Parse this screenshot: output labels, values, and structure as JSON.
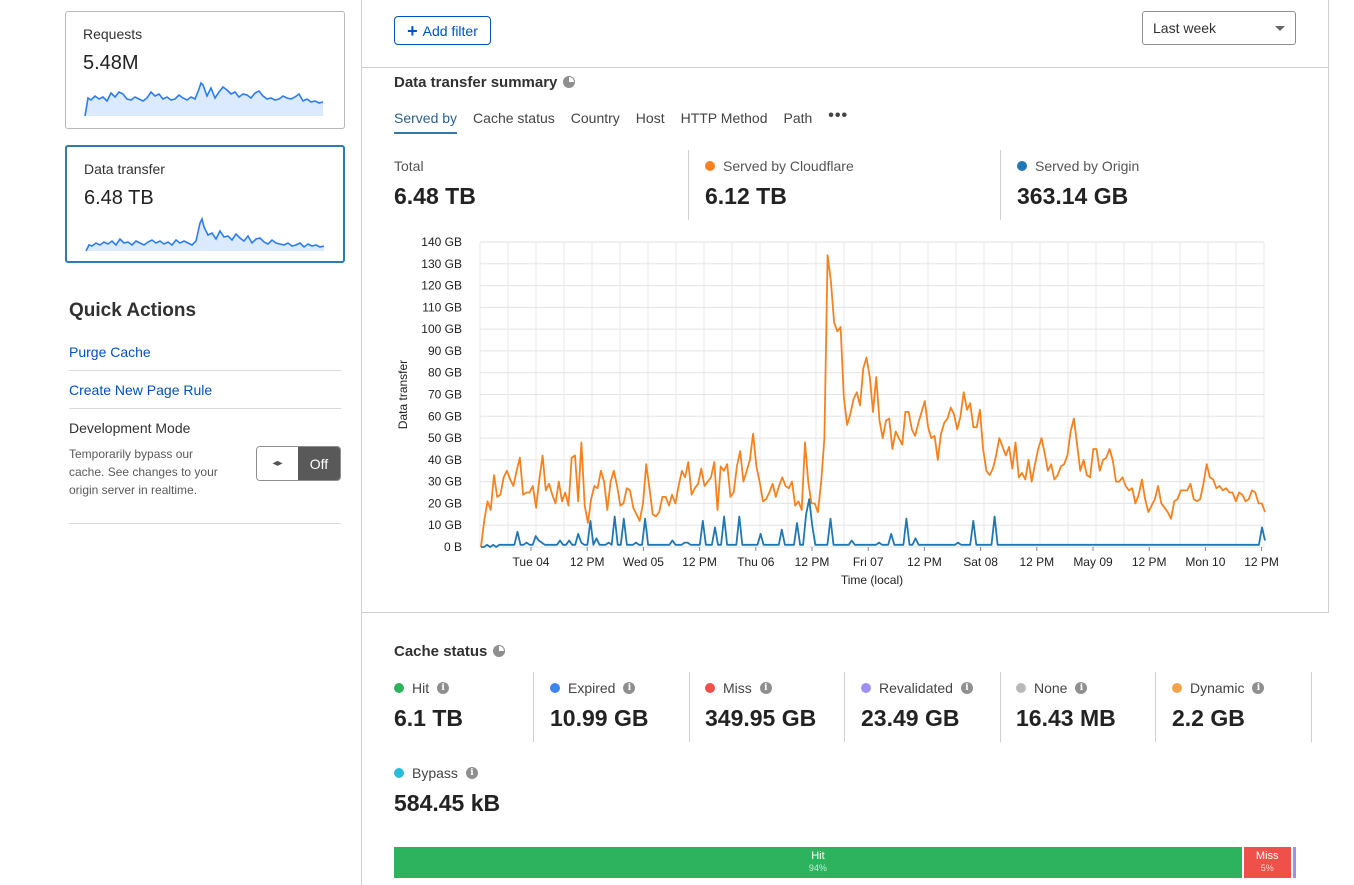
{
  "sidebar": {
    "requests": {
      "title": "Requests",
      "value": "5.48M"
    },
    "data_transfer": {
      "title": "Data transfer",
      "value": "6.48 TB"
    },
    "quick_actions": {
      "title": "Quick Actions",
      "purge": "Purge Cache",
      "page_rule": "Create New Page Rule",
      "dev_mode": {
        "title": "Development Mode",
        "description": "Temporarily bypass our cache. See changes to your origin server in realtime.",
        "toggle_label": "Off",
        "toggle_icon": "arrows-icon"
      }
    }
  },
  "toolbar": {
    "add_filter": "Add filter",
    "time_range": "Last week"
  },
  "summary": {
    "title": "Data transfer summary",
    "tabs": [
      "Served by",
      "Cache status",
      "Country",
      "Host",
      "HTTP Method",
      "Path"
    ],
    "active_tab": "Served by",
    "stats": {
      "total_label": "Total",
      "total_value": "6.48 TB",
      "cf_label": "Served by Cloudflare",
      "cf_value": "6.12 TB",
      "origin_label": "Served by Origin",
      "origin_value": "363.14 GB"
    },
    "colors": {
      "cloudflare": "#f6821f",
      "origin": "#1f77b4"
    }
  },
  "chart_data": {
    "type": "line",
    "ylabel": "Data transfer",
    "xlabel": "Time (local)",
    "ylim": [
      0,
      140
    ],
    "y_ticks": [
      "0 B",
      "10 GB",
      "20 GB",
      "30 GB",
      "40 GB",
      "50 GB",
      "60 GB",
      "70 GB",
      "80 GB",
      "90 GB",
      "100 GB",
      "110 GB",
      "120 GB",
      "130 GB",
      "140 GB"
    ],
    "x_ticks": [
      "Tue 04",
      "12 PM",
      "Wed 05",
      "12 PM",
      "Thu 06",
      "12 PM",
      "Fri 07",
      "12 PM",
      "Sat 08",
      "12 PM",
      "May 09",
      "12 PM",
      "Mon 10",
      "12 PM"
    ],
    "series": [
      {
        "name": "Served by Cloudflare",
        "color": "#f6821f",
        "values": [
          0,
          12,
          21,
          17,
          33,
          23,
          24,
          32,
          35,
          31,
          28,
          35,
          41,
          24,
          25,
          25,
          28,
          18,
          31,
          42,
          26,
          29,
          24,
          20,
          30,
          21,
          25,
          19,
          41,
          42,
          21,
          48,
          19,
          11,
          22,
          28,
          27,
          35,
          30,
          17,
          30,
          35,
          28,
          19,
          20,
          27,
          26,
          18,
          15,
          12,
          20,
          38,
          27,
          15,
          14,
          16,
          23,
          23,
          19,
          24,
          20,
          28,
          35,
          32,
          39,
          24,
          27,
          29,
          36,
          28,
          30,
          32,
          39,
          17,
          37,
          35,
          38,
          23,
          25,
          37,
          44,
          30,
          35,
          40,
          52,
          37,
          30,
          21,
          22,
          25,
          29,
          23,
          28,
          32,
          28,
          27,
          30,
          19,
          21,
          17,
          48,
          30,
          20,
          20,
          16,
          30,
          50,
          134,
          122,
          103,
          99,
          101,
          69,
          56,
          61,
          68,
          71,
          65,
          82,
          87,
          78,
          62,
          78,
          58,
          50,
          58,
          59,
          45,
          53,
          50,
          47,
          62,
          62,
          54,
          51,
          57,
          62,
          67,
          55,
          50,
          51,
          40,
          52,
          57,
          59,
          64,
          61,
          54,
          60,
          71,
          63,
          66,
          55,
          55,
          63,
          45,
          35,
          33,
          36,
          42,
          50,
          46,
          42,
          46,
          36,
          48,
          32,
          34,
          31,
          40,
          30,
          38,
          45,
          50,
          43,
          35,
          38,
          31,
          33,
          37,
          38,
          42,
          53,
          59,
          47,
          35,
          40,
          33,
          32,
          45,
          45,
          35,
          40,
          41,
          45,
          40,
          30,
          30,
          32,
          28,
          26,
          27,
          20,
          24,
          31,
          22,
          16,
          19,
          22,
          28,
          20,
          18,
          16,
          13,
          21,
          22,
          26,
          26,
          26,
          29,
          22,
          21,
          22,
          29,
          38,
          32,
          31,
          27,
          28,
          26,
          27,
          25,
          25,
          21,
          25,
          24,
          21,
          22,
          26,
          25,
          20,
          20,
          16
        ]
      },
      {
        "name": "Served by Origin",
        "color": "#1f77b4",
        "values": [
          0,
          0,
          1,
          0,
          1,
          0,
          1,
          1,
          1,
          1,
          1,
          1,
          7,
          1,
          1,
          2,
          1,
          1,
          5,
          3,
          2,
          1,
          1,
          1,
          1,
          1,
          3,
          1,
          1,
          3,
          1,
          1,
          6,
          2,
          1,
          1,
          12,
          1,
          4,
          1,
          1,
          1,
          2,
          1,
          14,
          1,
          1,
          13,
          1,
          1,
          1,
          2,
          1,
          1,
          13,
          1,
          1,
          1,
          1,
          1,
          1,
          1,
          1,
          3,
          1,
          1,
          1,
          2,
          2,
          1,
          1,
          1,
          1,
          12,
          1,
          1,
          1,
          9,
          1,
          1,
          14,
          1,
          1,
          1,
          1,
          14,
          1,
          1,
          1,
          1,
          1,
          1,
          6,
          1,
          1,
          1,
          1,
          1,
          1,
          8,
          1,
          1,
          1,
          1,
          11,
          1,
          1,
          15,
          22,
          10,
          1,
          1,
          1,
          1,
          1,
          13,
          1,
          1,
          1,
          1,
          1,
          1,
          3,
          1,
          1,
          1,
          1,
          1,
          1,
          1,
          1,
          2,
          1,
          1,
          1,
          6,
          1,
          1,
          1,
          1,
          13,
          1,
          1,
          4,
          1,
          1,
          1,
          1,
          1,
          1,
          1,
          1,
          1,
          1,
          1,
          1,
          1,
          2,
          1,
          1,
          1,
          1,
          12,
          1,
          1,
          1,
          1,
          1,
          1,
          14,
          1,
          1,
          1,
          1,
          1,
          1,
          1,
          1,
          1,
          1,
          1,
          1,
          1,
          1,
          1,
          1,
          1,
          1,
          1,
          1,
          1,
          1,
          1,
          1,
          1,
          1,
          1,
          1,
          1,
          1,
          1,
          1,
          1,
          1,
          1,
          1,
          1,
          1,
          1,
          1,
          1,
          1,
          1,
          1,
          1,
          1,
          1,
          1,
          1,
          1,
          1,
          1,
          1,
          1,
          1,
          1,
          1,
          1,
          1,
          1,
          1,
          1,
          1,
          1,
          1,
          1,
          1,
          1,
          1,
          1,
          1,
          1,
          1,
          1,
          1,
          1,
          1,
          1,
          1,
          1,
          1,
          1,
          1,
          1,
          1,
          1,
          1,
          9,
          3
        ]
      }
    ]
  },
  "cache_status": {
    "title": "Cache status",
    "items": [
      {
        "label": "Hit",
        "value": "6.1 TB",
        "color": "#2db35d"
      },
      {
        "label": "Expired",
        "value": "10.99 GB",
        "color": "#3d86f2"
      },
      {
        "label": "Miss",
        "value": "349.95 GB",
        "color": "#f0504a"
      },
      {
        "label": "Revalidated",
        "value": "23.49 GB",
        "color": "#9f8ff2"
      },
      {
        "label": "None",
        "value": "16.43 MB",
        "color": "#b9b9b9"
      },
      {
        "label": "Dynamic",
        "value": "2.2 GB",
        "color": "#f5a24a"
      },
      {
        "label": "Bypass",
        "value": "584.45 kB",
        "color": "#2bbcd9"
      }
    ],
    "bar": [
      {
        "label": "Hit",
        "pct": "94%",
        "fraction": 0.94,
        "color": "#2db35d"
      },
      {
        "label": "Miss",
        "pct": "5%",
        "fraction": 0.054,
        "color": "#f0504a"
      },
      {
        "label": "",
        "pct": "",
        "fraction": 0.006,
        "color": "#9f8ff2"
      }
    ]
  }
}
